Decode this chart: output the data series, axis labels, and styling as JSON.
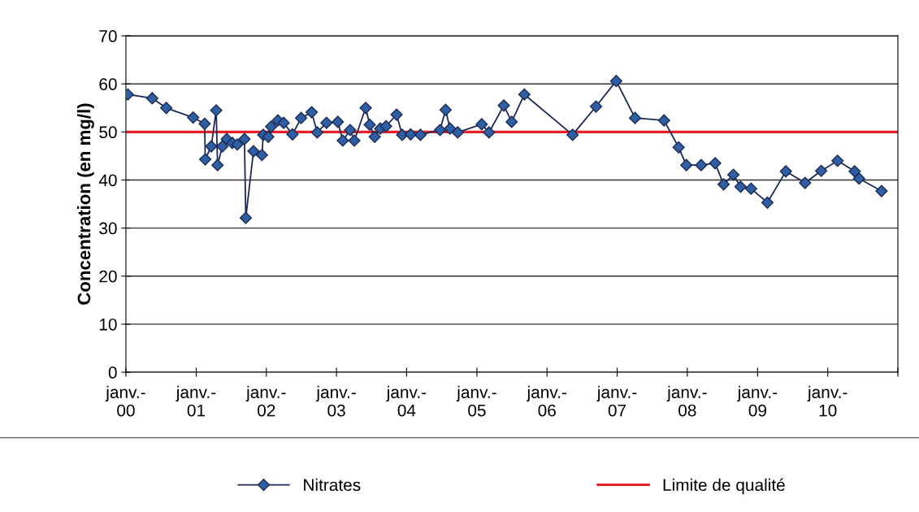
{
  "chart_data": {
    "type": "line",
    "ylabel": "Concentration (en mg/l)",
    "xlim": [
      "2000-01",
      "2011-01"
    ],
    "xticks": [
      {
        "value": "2000-01",
        "label": "janv.-\n00"
      },
      {
        "value": "2001-01",
        "label": "janv.-\n01"
      },
      {
        "value": "2002-01",
        "label": "janv.-\n02"
      },
      {
        "value": "2003-01",
        "label": "janv.-\n03"
      },
      {
        "value": "2004-01",
        "label": "janv.-\n04"
      },
      {
        "value": "2005-01",
        "label": "janv.-\n05"
      },
      {
        "value": "2006-01",
        "label": "janv.-\n06"
      },
      {
        "value": "2007-01",
        "label": "janv.-\n07"
      },
      {
        "value": "2008-01",
        "label": "janv.-\n08"
      },
      {
        "value": "2009-01",
        "label": "janv.-\n09"
      },
      {
        "value": "2010-01",
        "label": "janv.-\n10"
      },
      {
        "value": "2011-01",
        "label": null
      }
    ],
    "ylim": [
      0,
      70
    ],
    "yticks": [
      0,
      10,
      20,
      30,
      40,
      50,
      60,
      70
    ],
    "grid": "y",
    "legend": "bottom",
    "marker": "diamond",
    "line_style": "solid",
    "series": [
      {
        "name": "Nitrates",
        "color": "#2e5fa3",
        "x": [
          "2000-01-11",
          "2000-05-17",
          "2000-07-29",
          "2000-12-16",
          "2001-02-14",
          "2001-02-17",
          "2001-03-20",
          "2001-04-15",
          "2001-04-22",
          "2001-05-17",
          "2001-06-09",
          "2001-07-08",
          "2001-08-03",
          "2001-09-09",
          "2001-09-16",
          "2001-10-26",
          "2001-12-09",
          "2001-12-16",
          "2002-01-11",
          "2002-01-26",
          "2002-03-02",
          "2002-04-01",
          "2002-05-17",
          "2002-07-01",
          "2002-08-25",
          "2002-09-23",
          "2002-11-10",
          "2003-01-08",
          "2003-02-03",
          "2003-03-13",
          "2003-04-04",
          "2003-06-02",
          "2003-06-23",
          "2003-07-19",
          "2003-08-17",
          "2003-09-16",
          "2003-11-10",
          "2003-12-09",
          "2004-01-22",
          "2004-03-13",
          "2004-06-23",
          "2004-07-22",
          "2004-08-14",
          "2004-09-23",
          "2005-01-26",
          "2005-03-05",
          "2005-05-21",
          "2005-07-01",
          "2005-09-05",
          "2006-05-14",
          "2006-09-13",
          "2006-12-27",
          "2007-04-04",
          "2007-09-02",
          "2007-11-17",
          "2007-12-27",
          "2008-03-13",
          "2008-05-25",
          "2008-07-08",
          "2008-08-28",
          "2008-10-04",
          "2008-11-28",
          "2009-02-21",
          "2009-05-28",
          "2009-09-05",
          "2009-11-28",
          "2010-02-21",
          "2010-05-21",
          "2010-06-13",
          "2010-10-08"
        ],
        "values": [
          57.8,
          57.0,
          55.0,
          53.0,
          51.7,
          44.3,
          47.0,
          54.5,
          43.1,
          47.0,
          48.5,
          47.7,
          47.4,
          48.5,
          32.1,
          46.0,
          45.2,
          49.4,
          49.0,
          51.1,
          52.4,
          51.9,
          49.5,
          52.9,
          54.1,
          49.9,
          51.9,
          52.1,
          48.2,
          50.4,
          48.2,
          55.0,
          51.5,
          49.0,
          50.7,
          51.2,
          53.6,
          49.4,
          49.5,
          49.4,
          50.4,
          54.6,
          50.7,
          49.9,
          51.6,
          49.9,
          55.5,
          52.1,
          57.8,
          49.4,
          55.3,
          60.6,
          52.9,
          52.4,
          46.8,
          43.1,
          43.1,
          43.5,
          39.1,
          41.1,
          38.6,
          38.2,
          35.3,
          41.8,
          39.4,
          41.9,
          44.0,
          41.8,
          40.3,
          37.7
        ]
      }
    ],
    "ref_lines": [
      {
        "axis": "y",
        "value": 50,
        "label": "Limite de qualité",
        "color": "#e8202a",
        "line_style": "solid"
      }
    ]
  }
}
